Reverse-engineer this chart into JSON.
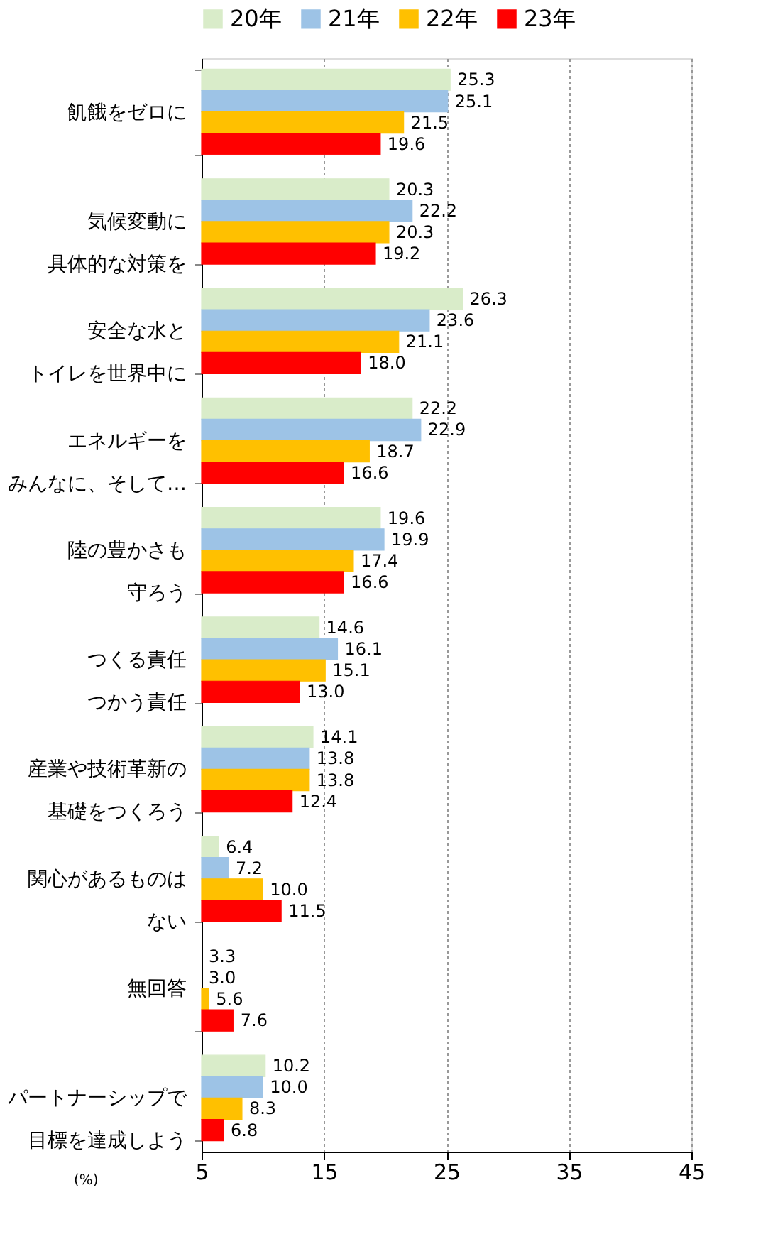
{
  "chart_data": {
    "type": "bar",
    "orientation": "horizontal",
    "categories": [
      "飢餓をゼロに",
      "気候変動に具体的な対策を",
      "安全な水とトイレを世界中に",
      "エネルギーをみんなに、そして…",
      "陸の豊かさも守ろう",
      "つくる責任つかう責任",
      "産業や技術革新の基礎をつくろう",
      "関心があるものはない",
      "無回答",
      "パートナーシップで目標を達成しよう"
    ],
    "series": [
      {
        "name": "20年",
        "color": "#d9ecc9",
        "values": [
          25.3,
          20.3,
          26.3,
          22.2,
          19.6,
          14.6,
          14.1,
          6.4,
          null,
          10.2
        ],
        "value_labels": [
          "25.3",
          "20.3",
          "26.3",
          "22.2",
          "19.6",
          "14.6",
          "14.1",
          "6.4",
          "3.3",
          "10.2"
        ]
      },
      {
        "name": "21年",
        "color": "#9dc3e6",
        "values": [
          25.1,
          22.2,
          23.6,
          22.9,
          19.9,
          16.1,
          13.8,
          7.2,
          null,
          10.0
        ],
        "value_labels": [
          "25.1",
          "22.2",
          "23.6",
          "22.9",
          "19.9",
          "16.1",
          "13.8",
          "7.2",
          "3.0",
          "10.0"
        ]
      },
      {
        "name": "22年",
        "color": "#ffc000",
        "values": [
          21.5,
          20.3,
          21.1,
          18.7,
          17.4,
          15.1,
          13.8,
          10.0,
          5.6,
          8.3
        ],
        "value_labels": [
          "21.5",
          "20.3",
          "21.1",
          "18.7",
          "17.4",
          "15.1",
          "13.8",
          "10.0",
          "5.6",
          "8.3"
        ]
      },
      {
        "name": "23年",
        "color": "#ff0000",
        "values": [
          19.6,
          19.2,
          18.0,
          16.6,
          16.6,
          13.0,
          12.4,
          11.5,
          7.6,
          6.8
        ],
        "value_labels": [
          "19.6",
          "19.2",
          "18.0",
          "16.6",
          "16.6",
          "13.0",
          "12.4",
          "11.5",
          "7.6",
          "6.8"
        ]
      }
    ],
    "xlim": [
      5,
      45
    ],
    "xticks": [
      5,
      15,
      25,
      35,
      45
    ],
    "grid": "x",
    "legend": "top left",
    "annotations": [
      "(%)"
    ]
  }
}
